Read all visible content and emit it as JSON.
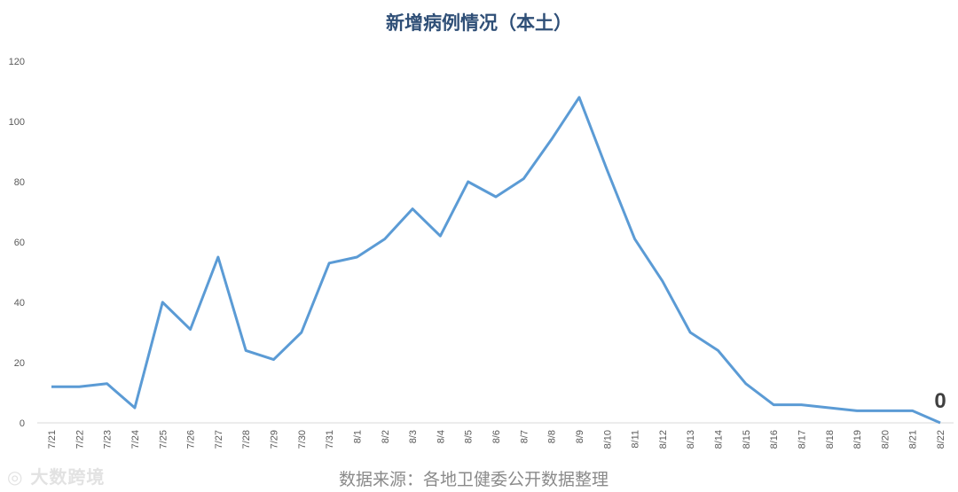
{
  "chart_data": {
    "type": "line",
    "title": "新增病例情况（本土）",
    "xlabel": "",
    "ylabel": "",
    "ylim": [
      0,
      120
    ],
    "yticks": [
      0,
      20,
      40,
      60,
      80,
      100,
      120
    ],
    "grid": false,
    "legend": "none",
    "categories": [
      "7/21",
      "7/22",
      "7/23",
      "7/24",
      "7/25",
      "7/26",
      "7/27",
      "7/28",
      "7/29",
      "7/30",
      "7/31",
      "8/1",
      "8/2",
      "8/3",
      "8/4",
      "8/5",
      "8/6",
      "8/7",
      "8/8",
      "8/9",
      "8/10",
      "8/11",
      "8/12",
      "8/13",
      "8/14",
      "8/15",
      "8/16",
      "8/17",
      "8/18",
      "8/19",
      "8/20",
      "8/21",
      "8/22"
    ],
    "series": [
      {
        "values": [
          12,
          12,
          13,
          5,
          40,
          31,
          55,
          24,
          21,
          30,
          53,
          55,
          61,
          71,
          62,
          80,
          75,
          81,
          94,
          108,
          84,
          61,
          47,
          30,
          24,
          13,
          6,
          6,
          5,
          4,
          4,
          4,
          0
        ],
        "color": "#5b9bd5"
      }
    ],
    "annotations": [
      {
        "category": "8/22",
        "text": "0"
      }
    ]
  },
  "source": "数据来源：各地卫健委公开数据整理",
  "watermark": "大数跨境"
}
